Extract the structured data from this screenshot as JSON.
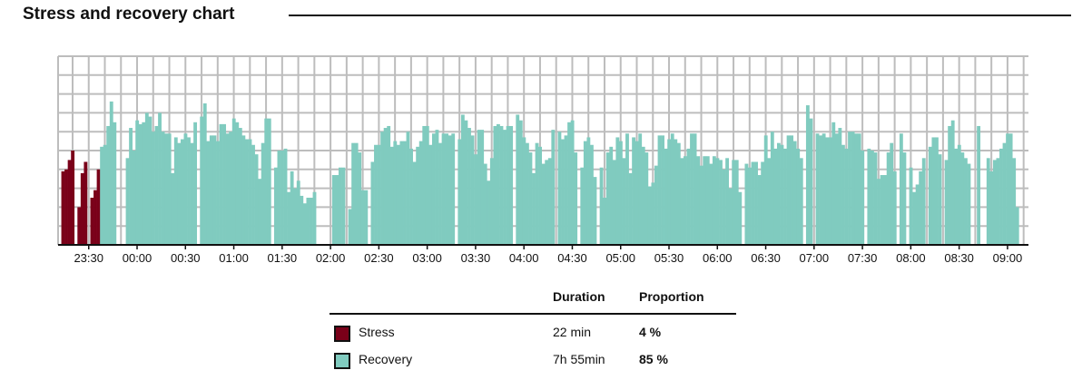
{
  "title": "Stress and recovery chart",
  "colors": {
    "stress": "#7a0019",
    "recovery": "#80cbbf",
    "grid": "#bdbdbd",
    "axis": "#111111"
  },
  "chart_data": {
    "type": "bar",
    "title": "Stress and recovery chart",
    "xlabel": "",
    "ylabel": "",
    "start_time": "23:11",
    "bin_minutes": 2,
    "ylim": [
      0,
      10
    ],
    "grid": true,
    "stress_bins": [
      1,
      12
    ],
    "values": [
      0,
      3.9,
      4.0,
      4.5,
      5.0,
      0,
      2.0,
      3.8,
      4.4,
      0,
      2.5,
      2.9,
      4.0,
      5.2,
      5.3,
      6.3,
      7.6,
      6.5,
      0,
      0,
      0,
      4.6,
      6.2,
      5.0,
      6.6,
      6.4,
      6.5,
      7.0,
      6.8,
      6.0,
      6.3,
      7.0,
      6.0,
      5.9,
      5.9,
      3.8,
      5.7,
      5.4,
      5.6,
      5.9,
      5.7,
      5.4,
      6.5,
      0,
      6.8,
      7.5,
      5.5,
      5.8,
      5.8,
      5.5,
      6.4,
      6.4,
      5.9,
      6.0,
      6.7,
      6.5,
      6.2,
      5.8,
      5.6,
      5.6,
      5.3,
      4.8,
      3.5,
      5.4,
      6.7,
      6.7,
      0,
      4.1,
      5.0,
      5.0,
      5.1,
      2.8,
      3.9,
      3.0,
      3.4,
      2.6,
      2.2,
      2.5,
      2.5,
      2.8,
      0,
      0,
      0,
      0,
      0,
      3.7,
      3.7,
      4.1,
      4.1,
      0,
      1.9,
      5.4,
      5.4,
      4.9,
      2.9,
      2.9,
      0,
      4.4,
      5.3,
      5.3,
      6.0,
      6.2,
      6.3,
      5.2,
      5.5,
      5.3,
      5.5,
      5.5,
      6.0,
      5.1,
      4.4,
      5.2,
      5.5,
      6.3,
      6.3,
      5.3,
      5.9,
      6.1,
      5.4,
      5.9,
      5.9,
      5.8,
      5.9,
      0,
      5.6,
      6.9,
      6.6,
      6.2,
      5.8,
      4.8,
      6.1,
      6.1,
      4.3,
      3.4,
      4.6,
      6.3,
      6.4,
      6.3,
      6.1,
      6.3,
      6.3,
      0,
      6.9,
      6.6,
      5.7,
      5.4,
      4.9,
      3.8,
      5.4,
      5.2,
      4.3,
      4.5,
      4.6,
      6.1,
      0,
      6.0,
      5.6,
      5.8,
      6.5,
      6.6,
      4.9,
      0,
      4.1,
      5.5,
      5.7,
      5.3,
      3.6,
      0,
      4.1,
      2.5,
      4.9,
      5.2,
      4.5,
      5.7,
      5.5,
      4.6,
      5.9,
      3.8,
      5.7,
      5.5,
      5.9,
      5.2,
      4.9,
      3.1,
      3.3,
      4.2,
      5.8,
      5.8,
      5.1,
      5.6,
      5.9,
      5.6,
      5.4,
      4.6,
      4.7,
      5.1,
      5.9,
      5.9,
      4.7,
      4.2,
      4.7,
      4.7,
      4.3,
      4.7,
      4.6,
      4.5,
      4.0,
      4.6,
      3.0,
      4.5,
      4.5,
      2.8,
      0,
      4.3,
      4.1,
      4.4,
      4.4,
      3.7,
      4.4,
      5.8,
      4.6,
      6.0,
      5.1,
      5.4,
      5.3,
      5.1,
      5.8,
      5.8,
      5.5,
      5.1,
      4.6,
      0,
      7.4,
      6.7,
      0,
      5.9,
      5.8,
      5.9,
      5.7,
      5.7,
      6.5,
      5.9,
      6.2,
      5.3,
      5.1,
      6.0,
      6.0,
      5.9,
      5.9,
      5.0,
      0,
      5.1,
      5.0,
      4.9,
      3.5,
      3.7,
      3.7,
      4.9,
      5.4,
      3.9,
      0,
      5.9,
      4.9,
      0,
      4.1,
      2.8,
      3.2,
      3.9,
      4.6,
      0,
      5.2,
      5.7,
      5.7,
      4.8,
      0,
      4.5,
      6.3,
      6.6,
      5.1,
      5.3,
      4.9,
      4.6,
      4.3,
      0,
      0,
      6.3,
      0,
      0,
      4.6,
      3.9,
      4.5,
      4.6,
      5.1,
      5.4,
      5.9,
      5.9,
      4.6,
      2.0,
      0,
      0,
      0
    ],
    "x_ticks": [
      "23:30",
      "00:00",
      "00:30",
      "01:00",
      "01:30",
      "02:00",
      "02:30",
      "03:00",
      "03:30",
      "04:00",
      "04:30",
      "05:00",
      "05:30",
      "06:00",
      "06:30",
      "07:00",
      "07:30",
      "08:00",
      "08:30",
      "09:00"
    ],
    "legend": "bottom-center"
  },
  "legend": {
    "headers": {
      "duration": "Duration",
      "proportion": "Proportion"
    },
    "rows": [
      {
        "label": "Stress",
        "duration": "22 min",
        "proportion": "4 %"
      },
      {
        "label": "Recovery",
        "duration": "7h 55min",
        "proportion": "85 %"
      }
    ]
  }
}
